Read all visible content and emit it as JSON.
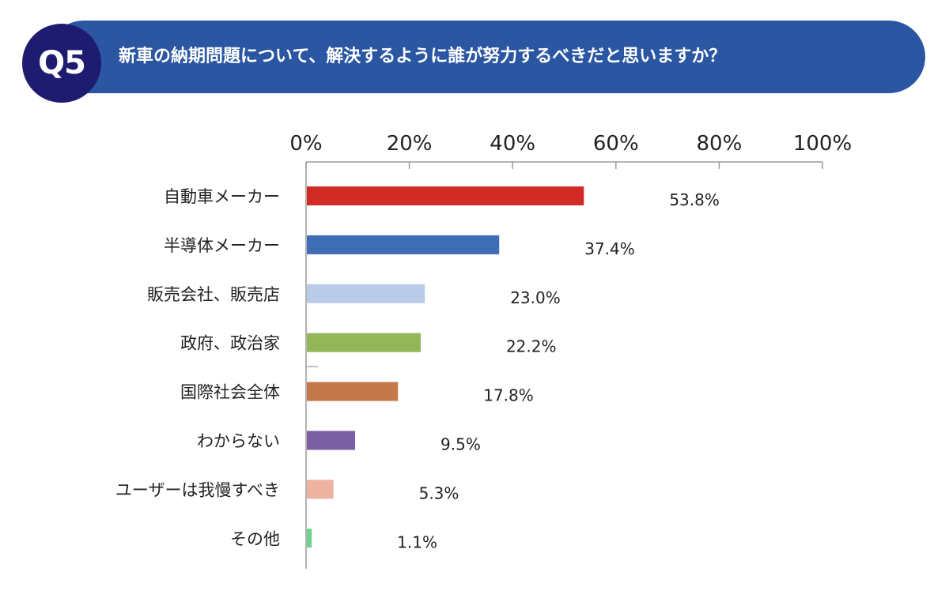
{
  "header": {
    "badge": "Q5",
    "question": "新車の納期問題について、解決するように誰が努力するべきだと思いますか？"
  },
  "colors": {
    "banner": "#2a56a2",
    "badge": "#1d1c70"
  },
  "chart_data": {
    "type": "bar",
    "orientation": "horizontal",
    "title": "",
    "xlabel": "",
    "ylabel": "",
    "xlim": [
      0,
      100
    ],
    "tick_labels": [
      "0%",
      "20%",
      "40%",
      "60%",
      "80%",
      "100%"
    ],
    "grid": false,
    "categories": [
      "自動車メーカー",
      "半導体メーカー",
      "販売会社、販売店",
      "政府、政治家",
      "国際社会全体",
      "わからない",
      "ユーザーは我慢すべき",
      "その他"
    ],
    "values": [
      53.8,
      37.4,
      23.0,
      22.2,
      17.8,
      9.5,
      5.3,
      1.1
    ],
    "value_labels": [
      "53.8%",
      "37.4%",
      "23.0%",
      "22.2%",
      "17.8%",
      "9.5%",
      "5.3%",
      "1.1%"
    ],
    "bar_colors": [
      "#d22b26",
      "#3f6db4",
      "#b8cbe7",
      "#93b658",
      "#c4794b",
      "#7a5fa3",
      "#eeb2a0",
      "#6fd38e"
    ]
  }
}
